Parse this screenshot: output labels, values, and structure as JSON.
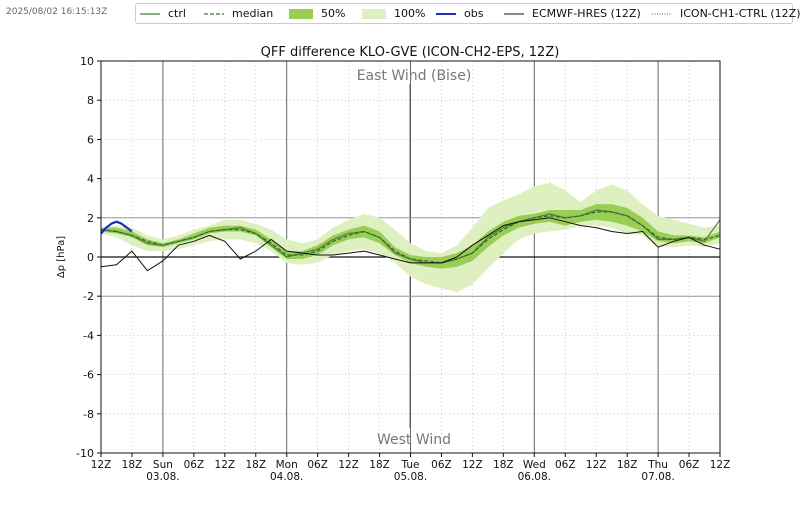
{
  "timestamp": "2025/08/02 16:15:13Z",
  "legend": [
    {
      "label": "ctrl",
      "style": "solid-thin",
      "color": "#4a7c3f"
    },
    {
      "label": "median",
      "style": "dashed",
      "color": "#3a7a30"
    },
    {
      "label": "50%",
      "style": "fill",
      "color": "#9acd55"
    },
    {
      "label": "100%",
      "style": "fill",
      "color": "#dff0c0"
    },
    {
      "label": "obs",
      "style": "solid-bold",
      "color": "#1f2dbf"
    },
    {
      "label": "ECMWF-HRES (12Z)",
      "style": "solid",
      "color": "#111111"
    },
    {
      "label": "ICON-CH1-CTRL (12Z)",
      "style": "dotted",
      "color": "#555555"
    }
  ],
  "chart_data": {
    "type": "line",
    "title": "QFF difference KLO-GVE (ICON-CH2-EPS, 12Z)",
    "ylabel": "Δp [hPa]",
    "xlabel": "",
    "ylim": [
      -10,
      10
    ],
    "yticks": [
      10,
      8,
      6,
      4,
      2,
      0,
      -2,
      -4,
      -6,
      -8,
      -10
    ],
    "xlim_hours": [
      0,
      120
    ],
    "xticks": [
      {
        "h": 0,
        "label": "12Z"
      },
      {
        "h": 6,
        "label": "18Z"
      },
      {
        "h": 12,
        "label": "Sun\n03.08."
      },
      {
        "h": 18,
        "label": "06Z"
      },
      {
        "h": 24,
        "label": "12Z"
      },
      {
        "h": 30,
        "label": "18Z"
      },
      {
        "h": 36,
        "label": "Mon\n04.08."
      },
      {
        "h": 42,
        "label": "06Z"
      },
      {
        "h": 48,
        "label": "12Z"
      },
      {
        "h": 54,
        "label": "18Z"
      },
      {
        "h": 60,
        "label": "Tue\n05.08."
      },
      {
        "h": 66,
        "label": "06Z"
      },
      {
        "h": 72,
        "label": "12Z"
      },
      {
        "h": 78,
        "label": "18Z"
      },
      {
        "h": 84,
        "label": "Wed\n06.08."
      },
      {
        "h": 90,
        "label": "06Z"
      },
      {
        "h": 96,
        "label": "12Z"
      },
      {
        "h": 102,
        "label": "18Z"
      },
      {
        "h": 108,
        "label": "Thu\n07.08."
      },
      {
        "h": 114,
        "label": "06Z"
      },
      {
        "h": 120,
        "label": "12Z"
      }
    ],
    "day_lines_hours": [
      12,
      36,
      60,
      84,
      108
    ],
    "grid": true,
    "annotations": {
      "top": "East Wind (Bise)",
      "bottom": "West Wind"
    },
    "hlines": [
      {
        "y": 0,
        "style": "solid"
      },
      {
        "y": 2,
        "style": "gray"
      },
      {
        "y": -2,
        "style": "gray"
      }
    ],
    "x_hours": [
      0,
      3,
      6,
      9,
      12,
      15,
      18,
      21,
      24,
      27,
      30,
      33,
      36,
      39,
      42,
      45,
      48,
      51,
      54,
      57,
      60,
      63,
      66,
      69,
      72,
      75,
      78,
      81,
      84,
      87,
      90,
      93,
      96,
      99,
      102,
      105,
      108,
      111,
      114,
      117,
      120
    ],
    "p100_low": [
      1.2,
      1.0,
      0.6,
      0.3,
      0.3,
      0.4,
      0.6,
      0.8,
      0.9,
      0.9,
      0.7,
      0.3,
      -0.3,
      -0.4,
      -0.3,
      0.1,
      0.3,
      0.4,
      0.2,
      -0.3,
      -1.0,
      -1.4,
      -1.6,
      -1.8,
      -1.4,
      -0.6,
      0.2,
      0.9,
      1.2,
      1.3,
      1.4,
      1.6,
      1.6,
      1.5,
      1.2,
      1.1,
      0.5,
      0.5,
      0.6,
      0.5,
      0.7
    ],
    "p100_high": [
      1.5,
      1.6,
      1.5,
      1.1,
      0.9,
      1.1,
      1.4,
      1.6,
      1.9,
      1.9,
      1.7,
      1.4,
      0.9,
      0.7,
      0.9,
      1.5,
      1.9,
      2.2,
      2.0,
      1.4,
      0.7,
      0.3,
      0.2,
      0.6,
      1.5,
      2.5,
      2.9,
      3.2,
      3.6,
      3.8,
      3.4,
      2.8,
      3.4,
      3.7,
      3.4,
      2.7,
      2.1,
      1.9,
      1.7,
      1.5,
      1.6
    ],
    "p50_low": [
      1.3,
      1.2,
      1.0,
      0.6,
      0.5,
      0.7,
      0.9,
      1.2,
      1.3,
      1.3,
      1.1,
      0.5,
      -0.1,
      -0.1,
      0.1,
      0.6,
      0.9,
      1.0,
      0.7,
      0.1,
      -0.3,
      -0.5,
      -0.6,
      -0.5,
      -0.2,
      0.5,
      1.1,
      1.5,
      1.7,
      1.8,
      1.6,
      1.8,
      1.9,
      1.8,
      1.6,
      1.3,
      0.8,
      0.7,
      0.8,
      0.7,
      1.0
    ],
    "p50_high": [
      1.5,
      1.5,
      1.3,
      0.9,
      0.7,
      0.9,
      1.2,
      1.5,
      1.6,
      1.6,
      1.4,
      0.9,
      0.3,
      0.3,
      0.6,
      1.1,
      1.4,
      1.6,
      1.3,
      0.5,
      0.1,
      0.0,
      0.0,
      0.2,
      0.6,
      1.3,
      1.8,
      2.1,
      2.2,
      2.4,
      2.4,
      2.4,
      2.7,
      2.7,
      2.5,
      2.0,
      1.3,
      1.1,
      1.1,
      1.0,
      1.3
    ],
    "series": [
      {
        "name": "ctrl",
        "style": "solid-thin",
        "values": [
          1.4,
          1.3,
          1.1,
          0.7,
          0.6,
          0.8,
          1.0,
          1.3,
          1.4,
          1.5,
          1.2,
          0.6,
          0.0,
          0.2,
          0.4,
          0.9,
          1.2,
          1.3,
          1.0,
          0.2,
          -0.1,
          -0.3,
          -0.3,
          -0.1,
          0.2,
          1.0,
          1.5,
          1.8,
          2.0,
          2.2,
          2.0,
          2.1,
          2.4,
          2.3,
          2.1,
          1.6,
          0.9,
          0.9,
          1.0,
          0.8,
          1.9
        ]
      },
      {
        "name": "median",
        "style": "dashed",
        "values": [
          1.4,
          1.3,
          1.1,
          0.8,
          0.6,
          0.8,
          1.0,
          1.3,
          1.4,
          1.4,
          1.2,
          0.7,
          0.1,
          0.1,
          0.3,
          0.8,
          1.1,
          1.3,
          1.0,
          0.3,
          -0.1,
          -0.2,
          -0.3,
          -0.1,
          0.2,
          0.9,
          1.4,
          1.8,
          2.0,
          2.1,
          2.0,
          2.1,
          2.3,
          2.3,
          2.1,
          1.6,
          1.0,
          0.9,
          1.0,
          0.9,
          1.1
        ]
      },
      {
        "name": "obs",
        "style": "solid-bold",
        "x": [
          0,
          1,
          2,
          3,
          4,
          5,
          6
        ],
        "values": [
          1.2,
          1.5,
          1.7,
          1.8,
          1.7,
          1.5,
          1.3
        ]
      },
      {
        "name": "ECMWF-HRES (12Z)",
        "style": "solid",
        "values": [
          -0.5,
          -0.4,
          0.3,
          -0.7,
          -0.2,
          0.6,
          0.8,
          1.1,
          0.8,
          -0.1,
          0.3,
          0.9,
          0.3,
          0.2,
          0.1,
          0.1,
          0.2,
          0.3,
          0.1,
          -0.1,
          -0.3,
          -0.3,
          -0.3,
          0.0,
          0.6,
          1.1,
          1.6,
          1.8,
          1.9,
          2.0,
          1.8,
          1.6,
          1.5,
          1.3,
          1.2,
          1.3,
          0.5,
          0.8,
          1.0,
          0.6,
          0.4
        ]
      },
      {
        "name": "ICON-CH1-CTRL (12Z)",
        "style": "dotted",
        "values": []
      }
    ]
  }
}
